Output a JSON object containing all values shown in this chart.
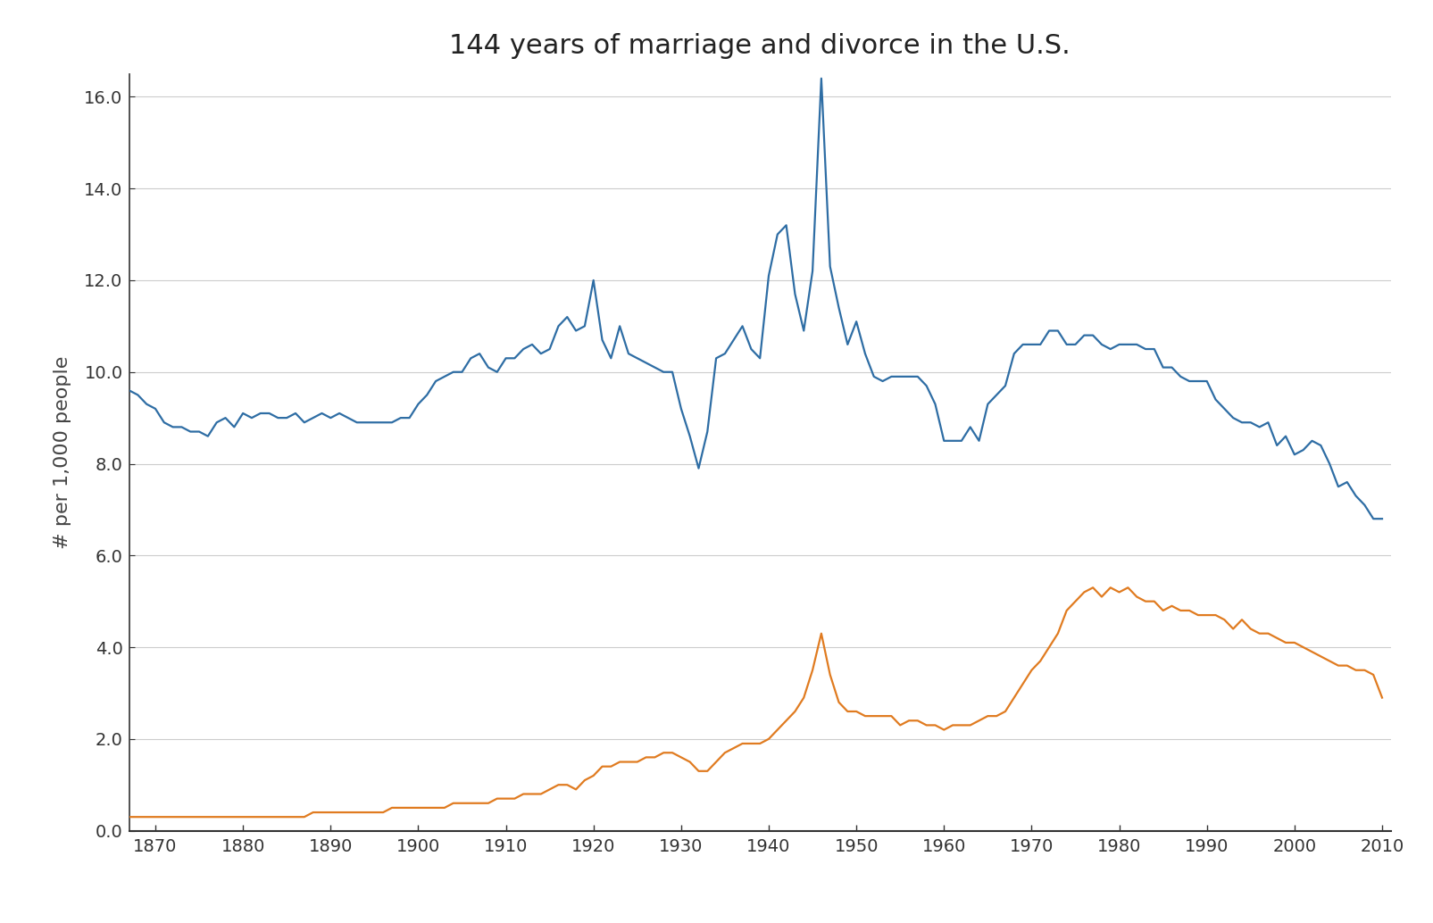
{
  "title": "144 years of marriage and divorce in the U.S.",
  "ylabel": "# per 1,000 people",
  "xlim": [
    1867,
    2011
  ],
  "ylim": [
    0,
    16.5
  ],
  "yticks": [
    0.0,
    2.0,
    4.0,
    6.0,
    8.0,
    10.0,
    12.0,
    14.0,
    16.0
  ],
  "xticks": [
    1870,
    1880,
    1890,
    1900,
    1910,
    1920,
    1930,
    1940,
    1950,
    1960,
    1970,
    1980,
    1990,
    2000,
    2010
  ],
  "marriage_color": "#2e6da4",
  "divorce_color": "#e07b20",
  "background_color": "#ffffff",
  "grid_color": "#cccccc",
  "spine_color": "#333333",
  "tick_color": "#333333",
  "label_color": "#444444",
  "marriage_data": {
    "years": [
      1867,
      1868,
      1869,
      1870,
      1871,
      1872,
      1873,
      1874,
      1875,
      1876,
      1877,
      1878,
      1879,
      1880,
      1881,
      1882,
      1883,
      1884,
      1885,
      1886,
      1887,
      1888,
      1889,
      1890,
      1891,
      1892,
      1893,
      1894,
      1895,
      1896,
      1897,
      1898,
      1899,
      1900,
      1901,
      1902,
      1903,
      1904,
      1905,
      1906,
      1907,
      1908,
      1909,
      1910,
      1911,
      1912,
      1913,
      1914,
      1915,
      1916,
      1917,
      1918,
      1919,
      1920,
      1921,
      1922,
      1923,
      1924,
      1925,
      1926,
      1927,
      1928,
      1929,
      1930,
      1931,
      1932,
      1933,
      1934,
      1935,
      1936,
      1937,
      1938,
      1939,
      1940,
      1941,
      1942,
      1943,
      1944,
      1945,
      1946,
      1947,
      1948,
      1949,
      1950,
      1951,
      1952,
      1953,
      1954,
      1955,
      1956,
      1957,
      1958,
      1959,
      1960,
      1961,
      1962,
      1963,
      1964,
      1965,
      1966,
      1967,
      1968,
      1969,
      1970,
      1971,
      1972,
      1973,
      1974,
      1975,
      1976,
      1977,
      1978,
      1979,
      1980,
      1981,
      1982,
      1983,
      1984,
      1985,
      1986,
      1987,
      1988,
      1989,
      1990,
      1991,
      1992,
      1993,
      1994,
      1995,
      1996,
      1997,
      1998,
      1999,
      2000,
      2001,
      2002,
      2003,
      2004,
      2005,
      2006,
      2007,
      2008,
      2009,
      2010
    ],
    "values": [
      9.6,
      9.5,
      9.3,
      9.2,
      8.9,
      8.8,
      8.8,
      8.7,
      8.7,
      8.6,
      8.9,
      9.0,
      8.8,
      9.1,
      9.0,
      9.1,
      9.1,
      9.0,
      9.0,
      9.1,
      8.9,
      9.0,
      9.1,
      9.0,
      9.1,
      9.0,
      8.9,
      8.9,
      8.9,
      8.9,
      8.9,
      9.0,
      9.0,
      9.3,
      9.5,
      9.8,
      9.9,
      10.0,
      10.0,
      10.3,
      10.4,
      10.1,
      10.0,
      10.3,
      10.3,
      10.5,
      10.6,
      10.4,
      10.5,
      11.0,
      11.2,
      10.9,
      11.0,
      12.0,
      10.7,
      10.3,
      11.0,
      10.4,
      10.3,
      10.2,
      10.1,
      10.0,
      10.0,
      9.2,
      8.6,
      7.9,
      8.7,
      10.3,
      10.4,
      10.7,
      11.0,
      10.5,
      10.3,
      12.1,
      13.0,
      13.2,
      11.7,
      10.9,
      12.2,
      16.4,
      12.3,
      11.4,
      10.6,
      11.1,
      10.4,
      9.9,
      9.8,
      9.9,
      9.9,
      9.9,
      9.9,
      9.7,
      9.3,
      8.5,
      8.5,
      8.5,
      8.8,
      8.5,
      9.3,
      9.5,
      9.7,
      10.4,
      10.6,
      10.6,
      10.6,
      10.9,
      10.9,
      10.6,
      10.6,
      10.8,
      10.8,
      10.6,
      10.5,
      10.6,
      10.6,
      10.6,
      10.5,
      10.5,
      10.1,
      10.1,
      9.9,
      9.8,
      9.8,
      9.8,
      9.4,
      9.2,
      9.0,
      8.9,
      8.9,
      8.8,
      8.9,
      8.4,
      8.6,
      8.2,
      8.3,
      8.5,
      8.4,
      8.0,
      7.5,
      7.6,
      7.3,
      7.1,
      6.8,
      6.8
    ]
  },
  "divorce_data": {
    "years": [
      1867,
      1868,
      1869,
      1870,
      1871,
      1872,
      1873,
      1874,
      1875,
      1876,
      1877,
      1878,
      1879,
      1880,
      1881,
      1882,
      1883,
      1884,
      1885,
      1886,
      1887,
      1888,
      1889,
      1890,
      1891,
      1892,
      1893,
      1894,
      1895,
      1896,
      1897,
      1898,
      1899,
      1900,
      1901,
      1902,
      1903,
      1904,
      1905,
      1906,
      1907,
      1908,
      1909,
      1910,
      1911,
      1912,
      1913,
      1914,
      1915,
      1916,
      1917,
      1918,
      1919,
      1920,
      1921,
      1922,
      1923,
      1924,
      1925,
      1926,
      1927,
      1928,
      1929,
      1930,
      1931,
      1932,
      1933,
      1934,
      1935,
      1936,
      1937,
      1938,
      1939,
      1940,
      1941,
      1942,
      1943,
      1944,
      1945,
      1946,
      1947,
      1948,
      1949,
      1950,
      1951,
      1952,
      1953,
      1954,
      1955,
      1956,
      1957,
      1958,
      1959,
      1960,
      1961,
      1962,
      1963,
      1964,
      1965,
      1966,
      1967,
      1968,
      1969,
      1970,
      1971,
      1972,
      1973,
      1974,
      1975,
      1976,
      1977,
      1978,
      1979,
      1980,
      1981,
      1982,
      1983,
      1984,
      1985,
      1986,
      1987,
      1988,
      1989,
      1990,
      1991,
      1992,
      1993,
      1994,
      1995,
      1996,
      1997,
      1998,
      1999,
      2000,
      2001,
      2002,
      2003,
      2004,
      2005,
      2006,
      2007,
      2008,
      2009,
      2010
    ],
    "values": [
      0.3,
      0.3,
      0.3,
      0.3,
      0.3,
      0.3,
      0.3,
      0.3,
      0.3,
      0.3,
      0.3,
      0.3,
      0.3,
      0.3,
      0.3,
      0.3,
      0.3,
      0.3,
      0.3,
      0.3,
      0.3,
      0.4,
      0.4,
      0.4,
      0.4,
      0.4,
      0.4,
      0.4,
      0.4,
      0.4,
      0.5,
      0.5,
      0.5,
      0.5,
      0.5,
      0.5,
      0.5,
      0.6,
      0.6,
      0.6,
      0.6,
      0.6,
      0.7,
      0.7,
      0.7,
      0.8,
      0.8,
      0.8,
      0.9,
      1.0,
      1.0,
      0.9,
      1.1,
      1.2,
      1.4,
      1.4,
      1.5,
      1.5,
      1.5,
      1.6,
      1.6,
      1.7,
      1.7,
      1.6,
      1.5,
      1.3,
      1.3,
      1.5,
      1.7,
      1.8,
      1.9,
      1.9,
      1.9,
      2.0,
      2.2,
      2.4,
      2.6,
      2.9,
      3.5,
      4.3,
      3.4,
      2.8,
      2.6,
      2.6,
      2.5,
      2.5,
      2.5,
      2.5,
      2.3,
      2.4,
      2.4,
      2.3,
      2.3,
      2.2,
      2.3,
      2.3,
      2.3,
      2.4,
      2.5,
      2.5,
      2.6,
      2.9,
      3.2,
      3.5,
      3.7,
      4.0,
      4.3,
      4.8,
      5.0,
      5.2,
      5.3,
      5.1,
      5.3,
      5.2,
      5.3,
      5.1,
      5.0,
      5.0,
      4.8,
      4.9,
      4.8,
      4.8,
      4.7,
      4.7,
      4.7,
      4.6,
      4.4,
      4.6,
      4.4,
      4.3,
      4.3,
      4.2,
      4.1,
      4.1,
      4.0,
      3.9,
      3.8,
      3.7,
      3.6,
      3.6,
      3.5,
      3.5,
      3.4,
      2.9
    ]
  }
}
